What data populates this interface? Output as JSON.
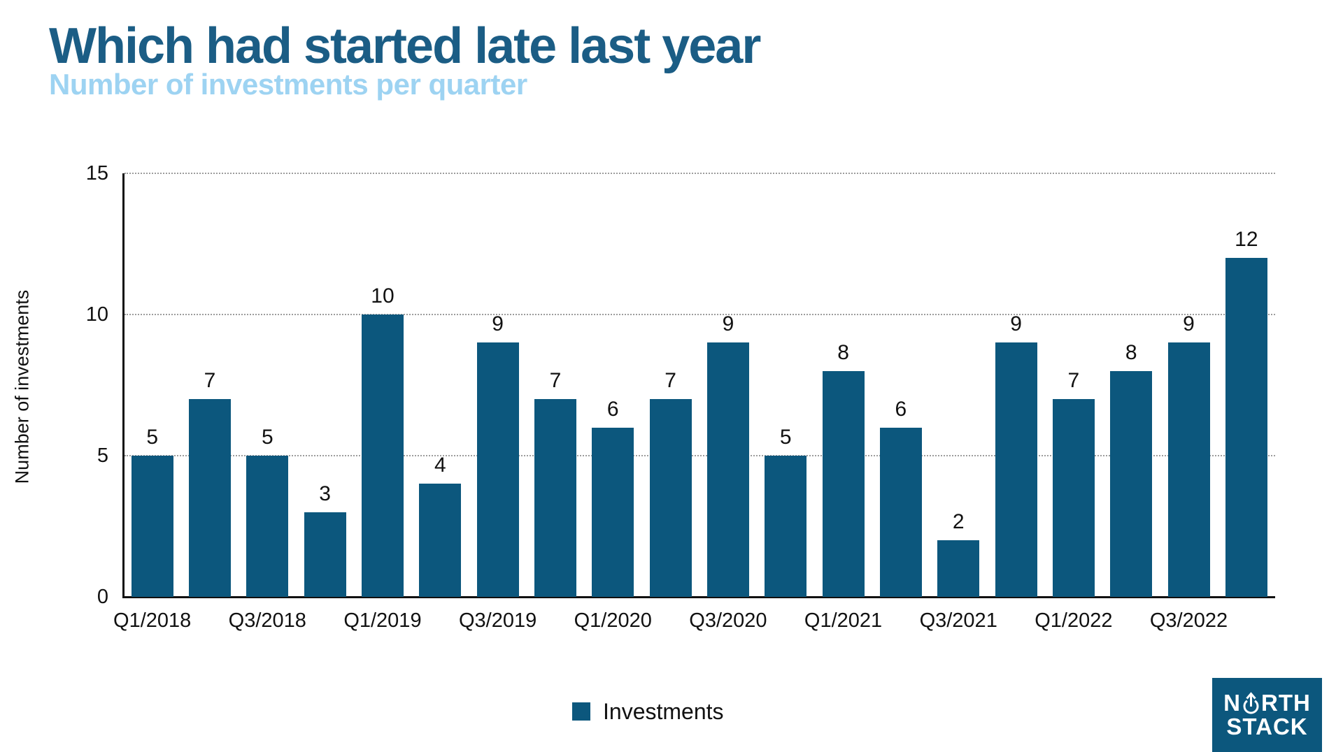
{
  "title": "Which had started late last year",
  "subtitle": "Number of investments per quarter",
  "colors": {
    "bar": "#0c577d",
    "title": "#1b5d85",
    "subtitle": "#9dd3f2",
    "gridline": "#9c9c9c",
    "axis": "#111111",
    "logo_background": "#0c577d",
    "logo_text": "#ffffff"
  },
  "chart_data": {
    "type": "bar",
    "title": "Which had started late last year",
    "subtitle": "Number of investments per quarter",
    "ylabel": "Number of investments",
    "xlabel": "",
    "ylim": [
      0,
      15
    ],
    "yticks": [
      0,
      5,
      10,
      15
    ],
    "grid": "horizontal dotted lines at 5, 10 and 15",
    "values": [
      5,
      7,
      5,
      3,
      10,
      4,
      9,
      7,
      6,
      7,
      9,
      5,
      8,
      6,
      2,
      9,
      7,
      8,
      9,
      12
    ],
    "bar_count": 20,
    "xtick_labels": [
      "Q1/2018",
      "Q3/2018",
      "Q1/2019",
      "Q3/2019",
      "Q1/2020",
      "Q3/2020",
      "Q1/2021",
      "Q3/2021",
      "Q1/2022",
      "Q3/2022"
    ],
    "xtick_every": 2,
    "data_labels_shown": true,
    "legend": {
      "label": "Investments",
      "position": "bottom-center"
    }
  },
  "legend": {
    "label": "Investments"
  },
  "logo": {
    "line1_start": "N",
    "icon": "arrow-up-circle",
    "line1_end": "RTH",
    "line2": "STACK"
  }
}
